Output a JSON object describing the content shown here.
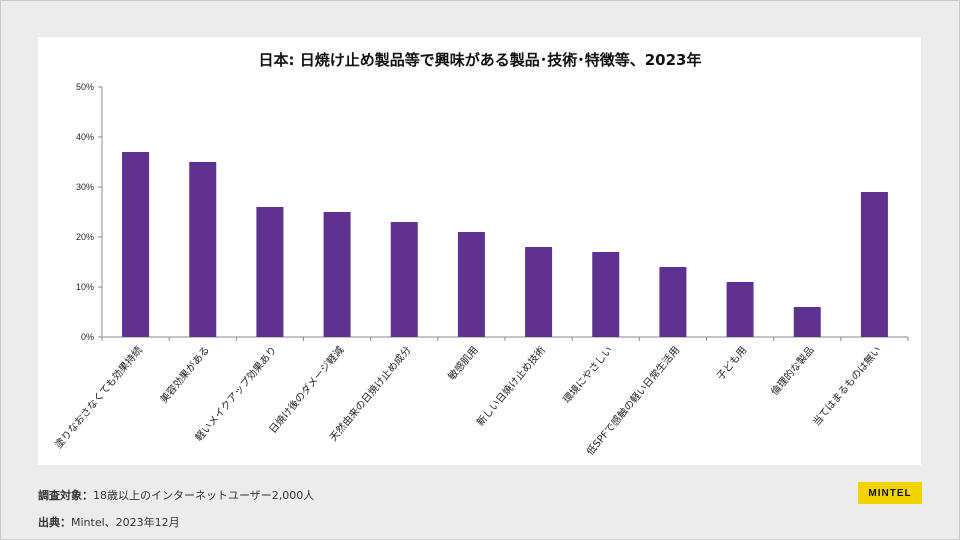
{
  "chart_data": {
    "type": "bar",
    "title": "日本: 日焼け止め製品等で興味がある製品･技術･特徴等、2023年",
    "categories": [
      "塗りなおさなくても効果持続",
      "美容効果がある",
      "軽いメイクアップ効果あり",
      "日焼け後のダメージ軽減",
      "天然由来の日焼け止め成分",
      "敏感肌用",
      "新しい日焼け止め技術",
      "環境にやさしい",
      "低SPFで感触の軽い日常生活用",
      "子ども用",
      "倫理的な製品",
      "当てはまるものは無い"
    ],
    "values": [
      37,
      35,
      26,
      25,
      23,
      21,
      18,
      17,
      14,
      11,
      6,
      29
    ],
    "ylim": [
      0,
      50
    ],
    "yticks": [
      "0%",
      "10%",
      "20%",
      "30%",
      "40%",
      "50%"
    ],
    "xlabel": "",
    "ylabel": "",
    "bar_color": "#5f3290",
    "grid": false
  },
  "footer": {
    "survey_label": "調査対象：",
    "survey_text": "18歳以上のインターネットユーザー2,000人",
    "source_label": "出典：",
    "source_text": "Mintel、2023年12月"
  },
  "logo": {
    "text": "MINTEL",
    "color": "#f2d400"
  }
}
